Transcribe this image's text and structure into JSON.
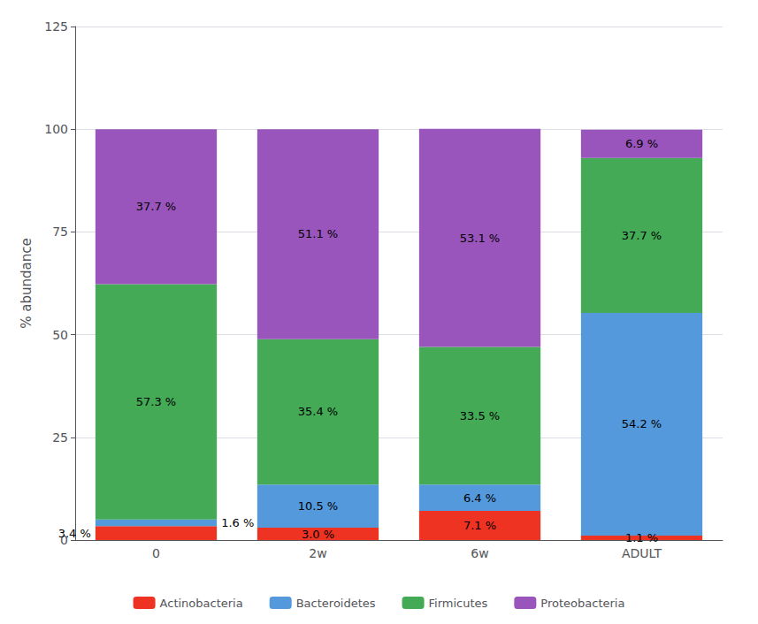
{
  "chart_data": {
    "type": "bar",
    "stacked": true,
    "ylabel": "% abundance",
    "categories": [
      "0",
      "2w",
      "6w",
      "ADULT"
    ],
    "series": [
      {
        "name": "Actinobacteria",
        "color": "#EE3322",
        "values": [
          3.4,
          3.0,
          7.1,
          1.1
        ],
        "value_labels": [
          "3.4 %",
          "3.0 %",
          "7.1 %",
          "1.1 %"
        ]
      },
      {
        "name": "Bacteroidetes",
        "color": "#5599DD",
        "values": [
          1.6,
          10.5,
          6.4,
          54.2
        ],
        "value_labels": [
          "1.6 %",
          "10.5 %",
          "6.4 %",
          "54.2 %"
        ]
      },
      {
        "name": "Firmicutes",
        "color": "#44AA55",
        "values": [
          57.3,
          35.4,
          33.5,
          37.7
        ],
        "value_labels": [
          "57.3 %",
          "35.4 %",
          "33.5 %",
          "37.7 %"
        ]
      },
      {
        "name": "Proteobacteria",
        "color": "#9955BB",
        "values": [
          37.7,
          51.1,
          53.1,
          6.9
        ],
        "value_labels": [
          "37.7 %",
          "51.1 %",
          "53.1 %",
          "6.9 %"
        ]
      }
    ],
    "ylim": [
      0,
      125
    ],
    "yticks": [
      0,
      25,
      50,
      75,
      100,
      125
    ],
    "grid": true,
    "legend": "bottom",
    "data_labels": true
  }
}
